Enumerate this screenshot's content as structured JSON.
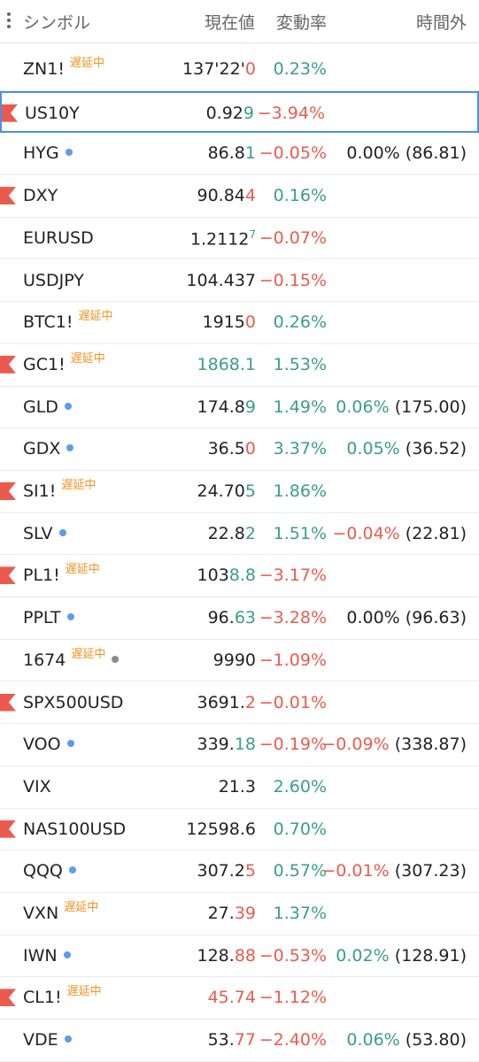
{
  "colors": {
    "up": "#3a9d8b",
    "down": "#ec5a4e",
    "flat": "#222222",
    "badge": "#f39321",
    "flag": "#ec5a4e",
    "selected": "#4a90e2"
  },
  "header": {
    "symbol": "シンボル",
    "price": "現在値",
    "change": "変動率",
    "ext": "時間外"
  },
  "rows": [
    {
      "symbol": "ZN1!",
      "badge": "遅延中",
      "price": "137'22'",
      "tick": "0",
      "tick_dir": "down",
      "change": "0.23%",
      "change_dir": "up"
    },
    {
      "symbol": "US10Y",
      "flag": true,
      "selected": true,
      "price": "0.92",
      "tick": "9",
      "tick_dir": "up",
      "change": "−3.94%",
      "change_dir": "down"
    },
    {
      "symbol": "HYG",
      "dot": "#5a9cf0",
      "price": "86.8",
      "tick": "1",
      "tick_dir": "up",
      "change": "−0.05%",
      "change_dir": "down",
      "ext_change": "0.00%",
      "ext_dir": "flat",
      "ext_price": "(86.81)"
    },
    {
      "symbol": "DXY",
      "flag": true,
      "price": "90.84",
      "tick": "4",
      "tick_dir": "down",
      "change": "0.16%",
      "change_dir": "up"
    },
    {
      "symbol": "EURUSD",
      "price": "1.2112",
      "sup": "7",
      "tick_dir": "up",
      "change": "−0.07%",
      "change_dir": "down"
    },
    {
      "symbol": "USDJPY",
      "price": "104.437",
      "change": "−0.15%",
      "change_dir": "down"
    },
    {
      "symbol": "BTC1!",
      "badge": "遅延中",
      "price": "1915",
      "tick": "0",
      "tick_dir": "down",
      "change": "0.26%",
      "change_dir": "up"
    },
    {
      "symbol": "GC1!",
      "flag": true,
      "badge": "遅延中",
      "tick": "1868.1",
      "tick_dir": "up",
      "change": "1.53%",
      "change_dir": "up"
    },
    {
      "symbol": "GLD",
      "dot": "#5a9cf0",
      "price": "174.8",
      "tick": "9",
      "tick_dir": "up",
      "change": "1.49%",
      "change_dir": "up",
      "ext_change": "0.06%",
      "ext_dir": "up",
      "ext_price": "(175.00)"
    },
    {
      "symbol": "GDX",
      "dot": "#5a9cf0",
      "price": "36.5",
      "tick": "0",
      "tick_dir": "down",
      "change": "3.37%",
      "change_dir": "up",
      "ext_change": "0.05%",
      "ext_dir": "up",
      "ext_price": "(36.52)"
    },
    {
      "symbol": "SI1!",
      "flag": true,
      "badge": "遅延中",
      "price": "24.70",
      "tick": "5",
      "tick_dir": "up",
      "change": "1.86%",
      "change_dir": "up"
    },
    {
      "symbol": "SLV",
      "dot": "#5a9cf0",
      "price": "22.8",
      "tick": "2",
      "tick_dir": "up",
      "change": "1.51%",
      "change_dir": "up",
      "ext_change": "−0.04%",
      "ext_dir": "down",
      "ext_price": "(22.81)"
    },
    {
      "symbol": "PL1!",
      "flag": true,
      "badge": "遅延中",
      "price": "103",
      "tick": "8.8",
      "tick_dir": "up",
      "change": "−3.17%",
      "change_dir": "down"
    },
    {
      "symbol": "PPLT",
      "dot": "#5a9cf0",
      "price": "96.",
      "tick": "63",
      "tick_dir": "up",
      "change": "−3.28%",
      "change_dir": "down",
      "ext_change": "0.00%",
      "ext_dir": "flat",
      "ext_price": "(96.63)"
    },
    {
      "symbol": "1674",
      "badge": "遅延中",
      "dot": "#8a8a8a",
      "price": "9990",
      "change": "−1.09%",
      "change_dir": "down"
    },
    {
      "symbol": "SPX500USD",
      "flag": true,
      "price": "3691.",
      "tick": "2",
      "tick_dir": "down",
      "change": "−0.01%",
      "change_dir": "down"
    },
    {
      "symbol": "VOO",
      "dot": "#5a9cf0",
      "price": "339.",
      "tick": "18",
      "tick_dir": "up",
      "change": "−0.19%",
      "change_dir": "down",
      "ext_change": "−0.09%",
      "ext_dir": "down",
      "ext_price": "(338.87)"
    },
    {
      "symbol": "VIX",
      "price": "21.3",
      "change": "2.60%",
      "change_dir": "up"
    },
    {
      "symbol": "NAS100USD",
      "flag": true,
      "price": "12598.6",
      "change": "0.70%",
      "change_dir": "up"
    },
    {
      "symbol": "QQQ",
      "dot": "#5a9cf0",
      "price": "307.2",
      "tick": "5",
      "tick_dir": "down",
      "change": "0.57%",
      "change_dir": "up",
      "ext_change": "−0.01%",
      "ext_dir": "down",
      "ext_price": "(307.23)"
    },
    {
      "symbol": "VXN",
      "badge": "遅延中",
      "price": "27.",
      "tick": "39",
      "tick_dir": "down",
      "change": "1.37%",
      "change_dir": "up"
    },
    {
      "symbol": "IWN",
      "dot": "#5a9cf0",
      "price": "128.",
      "tick": "88",
      "tick_dir": "down",
      "change": "−0.53%",
      "change_dir": "down",
      "ext_change": "0.02%",
      "ext_dir": "up",
      "ext_price": "(128.91)"
    },
    {
      "symbol": "CL1!",
      "flag": true,
      "badge": "遅延中",
      "tick": "45.74",
      "tick_dir": "down",
      "change": "−1.12%",
      "change_dir": "down"
    },
    {
      "symbol": "VDE",
      "dot": "#5a9cf0",
      "price": "53.",
      "tick": "77",
      "tick_dir": "down",
      "change": "−2.40%",
      "change_dir": "down",
      "ext_change": "0.06%",
      "ext_dir": "up",
      "ext_price": "(53.80)"
    }
  ]
}
